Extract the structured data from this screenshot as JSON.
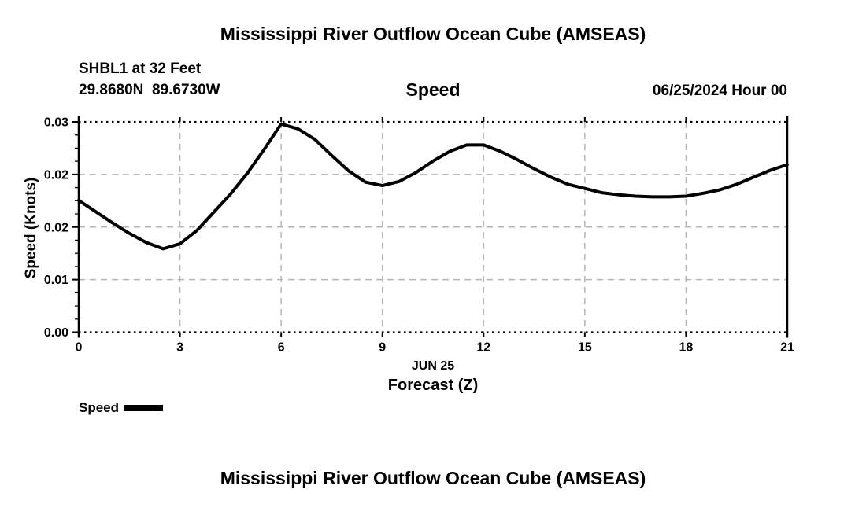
{
  "page": {
    "top_title": "Mississippi River Outflow Ocean Cube (AMSEAS)",
    "bottom_title": "Mississippi River Outflow Ocean Cube (AMSEAS)"
  },
  "header": {
    "station_line1": "SHBL1 at 32 Feet",
    "station_line2": "29.8680N  89.6730W",
    "panel_title": "Speed",
    "datetime": "06/25/2024 Hour 00"
  },
  "legend": {
    "label": "Speed",
    "line_color": "#000000"
  },
  "colors": {
    "background": "#ffffff",
    "text": "#000000",
    "gridline": "#b5b5b5",
    "axis": "#000000",
    "curve": "#000000"
  },
  "chart_data": {
    "type": "line",
    "title": "Speed",
    "station": "SHBL1 at 32 Feet",
    "location": "29.8680N 89.6730W",
    "run_date": "06/25/2024 Hour 00",
    "xlabel_line1": "JUN 25",
    "xlabel_line2": "Forecast (Z)",
    "ylabel": "Speed (Knots)",
    "xlim": [
      0,
      21
    ],
    "ylim": [
      0,
      0.03
    ],
    "x_ticks": [
      0,
      3,
      6,
      9,
      12,
      15,
      18,
      21
    ],
    "x_tick_labels": [
      "0",
      "3",
      "6",
      "9",
      "12",
      "15",
      "18",
      "21"
    ],
    "y_ticks": [
      0,
      0.0075,
      0.015,
      0.0225,
      0.03
    ],
    "y_tick_labels": [
      "0.00",
      "0.01",
      "0.02",
      "0.02",
      "0.03"
    ],
    "grid": true,
    "legend_position": "bottom-left",
    "series": [
      {
        "name": "Speed",
        "color": "#000000",
        "x": [
          0,
          0.5,
          1,
          1.5,
          2,
          2.5,
          3,
          3.5,
          4,
          4.5,
          5,
          5.5,
          6,
          6.5,
          7,
          7.5,
          8,
          8.5,
          9,
          9.5,
          10,
          10.5,
          11,
          11.5,
          12,
          12.5,
          13,
          13.5,
          14,
          14.5,
          15,
          15.5,
          16,
          16.5,
          17,
          17.5,
          18,
          18.5,
          19,
          19.5,
          20,
          20.5,
          21
        ],
        "values": [
          0.0188,
          0.0172,
          0.0156,
          0.0141,
          0.0128,
          0.0119,
          0.0126,
          0.0145,
          0.0171,
          0.0197,
          0.0227,
          0.0261,
          0.0297,
          0.029,
          0.0275,
          0.0252,
          0.023,
          0.0214,
          0.0209,
          0.0215,
          0.0228,
          0.0244,
          0.0258,
          0.0267,
          0.0267,
          0.0258,
          0.0246,
          0.0233,
          0.0221,
          0.0211,
          0.0205,
          0.0199,
          0.0196,
          0.0194,
          0.0193,
          0.0193,
          0.0194,
          0.0198,
          0.0203,
          0.0211,
          0.0221,
          0.0231,
          0.0239
        ]
      }
    ]
  }
}
